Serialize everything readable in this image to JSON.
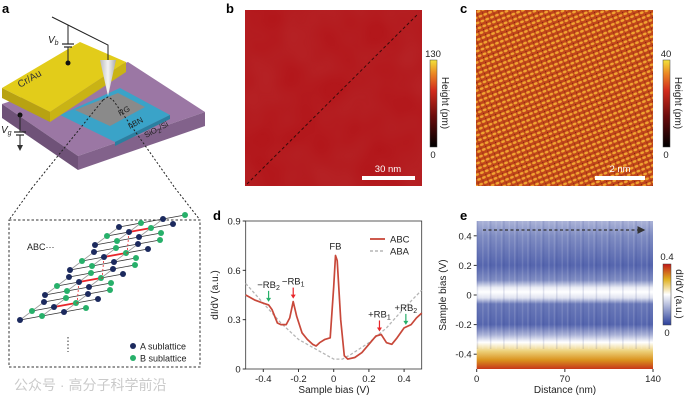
{
  "panels": {
    "a": {
      "label": "a",
      "vb_label": "V",
      "vb_sub": "b",
      "vg_label": "V",
      "vg_sub": "g",
      "electrode": "Cr/Au",
      "sample": "RG",
      "dielectric": "hBN",
      "substrate": "SiO",
      "substrate_sub": "2",
      "substrate_tail": "/Si",
      "stacking": "ABC···",
      "legend": [
        "A sublattice",
        "B sublattice"
      ],
      "colors": {
        "electrode": "#e2cc1a",
        "hbn": "#3aa3c8",
        "substrate": "#9b77a4",
        "rg": "#8a8a8a",
        "a_site": "#1c2a5e",
        "b_site": "#27b06a",
        "interlayer_bond": "#e8262a"
      }
    },
    "b": {
      "label": "b",
      "scale_bar": "30 nm",
      "colorbar": {
        "max": "130",
        "min": "0",
        "label": "Height (pm)"
      }
    },
    "c": {
      "label": "c",
      "scale_bar": "2 nm",
      "colorbar": {
        "max": "40",
        "min": "0",
        "label": "Height (pm)"
      }
    },
    "d": {
      "label": "d"
    },
    "e": {
      "label": "e",
      "colorbar": {
        "max": "0.4",
        "min": "0",
        "label": "dI/dV (a.u.)"
      }
    }
  },
  "watermark": "公众号 · 高分子科学前沿",
  "chart_data": [
    {
      "panel": "d",
      "type": "line",
      "xlabel": "Sample bias (V)",
      "ylabel": "dI/dV (a.u.)",
      "xlim": [
        -0.5,
        0.5
      ],
      "ylim": [
        0,
        0.9
      ],
      "xticks": [
        "-0.4",
        "-0.2",
        "0",
        "0.2",
        "0.4"
      ],
      "xtick_values": [
        -0.4,
        -0.2,
        0,
        0.2,
        0.4
      ],
      "yticks": [
        "0",
        "0.3",
        "0.6",
        "0.9"
      ],
      "ytick_values": [
        0,
        0.3,
        0.6,
        0.9
      ],
      "legend_position": "top-right",
      "series": [
        {
          "name": "ABC",
          "color": "#c8483a",
          "style": "solid",
          "x": [
            -0.5,
            -0.45,
            -0.4,
            -0.37,
            -0.35,
            -0.32,
            -0.3,
            -0.27,
            -0.25,
            -0.23,
            -0.21,
            -0.18,
            -0.15,
            -0.12,
            -0.1,
            -0.08,
            -0.05,
            -0.02,
            0,
            0.01,
            0.02,
            0.04,
            0.06,
            0.08,
            0.12,
            0.16,
            0.2,
            0.24,
            0.27,
            0.3,
            0.33,
            0.36,
            0.4,
            0.44,
            0.47,
            0.5
          ],
          "y": [
            0.45,
            0.42,
            0.4,
            0.39,
            0.36,
            0.28,
            0.27,
            0.27,
            0.31,
            0.41,
            0.32,
            0.22,
            0.18,
            0.15,
            0.14,
            0.16,
            0.18,
            0.19,
            0.5,
            0.69,
            0.66,
            0.3,
            0.08,
            0.06,
            0.07,
            0.1,
            0.15,
            0.2,
            0.21,
            0.16,
            0.15,
            0.19,
            0.25,
            0.27,
            0.31,
            0.34
          ]
        },
        {
          "name": "ABA",
          "color": "#b5b5b5",
          "style": "dashed",
          "x": [
            -0.5,
            -0.4,
            -0.3,
            -0.2,
            -0.1,
            0,
            0.05,
            0.1,
            0.2,
            0.3,
            0.4,
            0.5
          ],
          "y": [
            0.52,
            0.4,
            0.28,
            0.18,
            0.12,
            0.06,
            0.06,
            0.09,
            0.16,
            0.25,
            0.37,
            0.48
          ]
        }
      ],
      "annotations": [
        {
          "text": "−RB",
          "sub": "2",
          "x": -0.37,
          "y": 0.39,
          "arrow_color": "#27b06a"
        },
        {
          "text": "−RB",
          "sub": "1",
          "x": -0.23,
          "y": 0.41,
          "arrow_color": "#e8262a"
        },
        {
          "text": "FB",
          "sub": "",
          "x": 0.01,
          "y": 0.69,
          "arrow_color": ""
        },
        {
          "text": "+RB",
          "sub": "1",
          "x": 0.26,
          "y": 0.21,
          "arrow_color": "#e8262a"
        },
        {
          "text": "+RB",
          "sub": "2",
          "x": 0.41,
          "y": 0.25,
          "arrow_color": "#27b06a"
        }
      ]
    },
    {
      "panel": "e",
      "type": "heatmap",
      "xlabel": "Distance (nm)",
      "ylabel": "Sample bias (V)",
      "xlim": [
        0,
        140
      ],
      "ylim": [
        -0.5,
        0.5
      ],
      "xticks": [
        "0",
        "70",
        "140"
      ],
      "xtick_values": [
        0,
        70,
        140
      ],
      "yticks": [
        "0.4",
        "0.2",
        "0",
        "-0.2",
        "-0.4"
      ],
      "ytick_values": [
        0.4,
        0.2,
        0,
        -0.2,
        -0.4
      ],
      "colorscale": [
        "#2a3f9a",
        "#ffffff",
        "#e0b020",
        "#c01818"
      ],
      "zlim": [
        0,
        0.4
      ],
      "profile_bias": [
        0.5,
        0.4,
        0.2,
        0.1,
        0.05,
        0.02,
        -0.02,
        -0.06,
        -0.2,
        -0.27,
        -0.32,
        -0.38,
        -0.44,
        -0.5
      ],
      "profile_value": [
        0.12,
        0.08,
        0.04,
        0.08,
        0.18,
        0.2,
        0.17,
        0.06,
        0.04,
        0.12,
        0.2,
        0.26,
        0.32,
        0.38
      ]
    }
  ]
}
